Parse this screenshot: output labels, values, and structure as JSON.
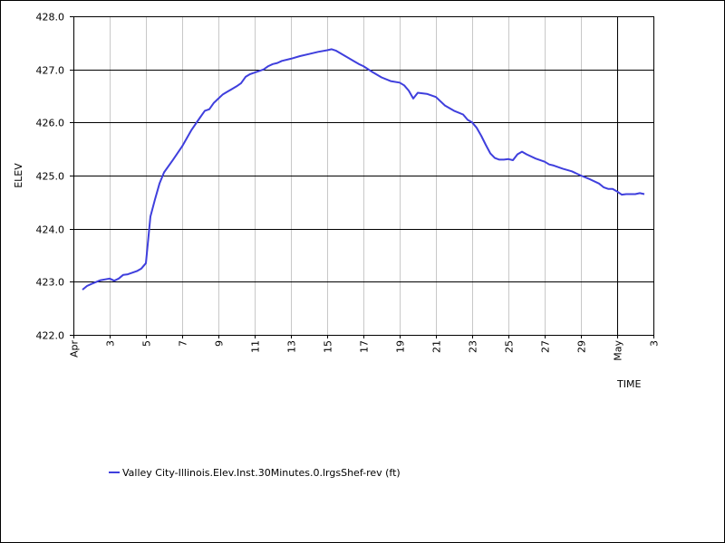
{
  "chart_data": {
    "type": "line",
    "title": "",
    "xlabel": "TIME",
    "ylabel": "ELEV",
    "x_unit": "day-of-month (Apr 1 .. May 3)",
    "x_range": [
      "2011-04-01",
      "2011-05-03"
    ],
    "ylim": [
      422.0,
      428.0
    ],
    "y_ticks": [
      "422.0",
      "423.0",
      "424.0",
      "425.0",
      "426.0",
      "427.0",
      "428.0"
    ],
    "x_ticks": [
      {
        "date": "2011-04-01",
        "label": "Apr",
        "major": true
      },
      {
        "date": "2011-04-03",
        "label": "3",
        "major": false
      },
      {
        "date": "2011-04-05",
        "label": "5",
        "major": false
      },
      {
        "date": "2011-04-07",
        "label": "7",
        "major": false
      },
      {
        "date": "2011-04-09",
        "label": "9",
        "major": false
      },
      {
        "date": "2011-04-11",
        "label": "11",
        "major": false
      },
      {
        "date": "2011-04-13",
        "label": "13",
        "major": false
      },
      {
        "date": "2011-04-15",
        "label": "15",
        "major": false
      },
      {
        "date": "2011-04-17",
        "label": "17",
        "major": false
      },
      {
        "date": "2011-04-19",
        "label": "19",
        "major": false
      },
      {
        "date": "2011-04-21",
        "label": "21",
        "major": false
      },
      {
        "date": "2011-04-23",
        "label": "23",
        "major": false
      },
      {
        "date": "2011-04-25",
        "label": "25",
        "major": false
      },
      {
        "date": "2011-04-27",
        "label": "27",
        "major": false
      },
      {
        "date": "2011-04-29",
        "label": "29",
        "major": false
      },
      {
        "date": "2011-05-01",
        "label": "May",
        "major": true
      },
      {
        "date": "2011-05-03",
        "label": "3",
        "major": false
      }
    ],
    "grid": true,
    "legend_position": "bottom-left",
    "series": [
      {
        "name": "Valley City-Illinois.Elev.Inst.30Minutes.0.lrgsShef-rev (ft)",
        "color": "#3f3fdd",
        "points": [
          [
            "2011-04-01 12:00",
            422.85
          ],
          [
            "2011-04-01 18:00",
            422.92
          ],
          [
            "2011-04-02 00:00",
            422.96
          ],
          [
            "2011-04-02 12:00",
            423.03
          ],
          [
            "2011-04-03 00:00",
            423.06
          ],
          [
            "2011-04-03 06:00",
            423.02
          ],
          [
            "2011-04-03 12:00",
            423.06
          ],
          [
            "2011-04-03 18:00",
            423.13
          ],
          [
            "2011-04-04 00:00",
            423.14
          ],
          [
            "2011-04-04 12:00",
            423.2
          ],
          [
            "2011-04-04 18:00",
            423.25
          ],
          [
            "2011-04-05 00:00",
            423.35
          ],
          [
            "2011-04-05 06:00",
            424.23
          ],
          [
            "2011-04-05 12:00",
            424.55
          ],
          [
            "2011-04-05 18:00",
            424.85
          ],
          [
            "2011-04-06 00:00",
            425.06
          ],
          [
            "2011-04-06 12:00",
            425.3
          ],
          [
            "2011-04-07 00:00",
            425.55
          ],
          [
            "2011-04-07 12:00",
            425.85
          ],
          [
            "2011-04-08 00:00",
            426.1
          ],
          [
            "2011-04-08 06:00",
            426.22
          ],
          [
            "2011-04-08 12:00",
            426.25
          ],
          [
            "2011-04-08 18:00",
            426.37
          ],
          [
            "2011-04-09 00:00",
            426.45
          ],
          [
            "2011-04-09 06:00",
            426.53
          ],
          [
            "2011-04-09 12:00",
            426.58
          ],
          [
            "2011-04-10 00:00",
            426.68
          ],
          [
            "2011-04-10 06:00",
            426.74
          ],
          [
            "2011-04-10 12:00",
            426.86
          ],
          [
            "2011-04-10 18:00",
            426.91
          ],
          [
            "2011-04-11 00:00",
            426.94
          ],
          [
            "2011-04-11 12:00",
            427.0
          ],
          [
            "2011-04-11 18:00",
            427.06
          ],
          [
            "2011-04-12 00:00",
            427.1
          ],
          [
            "2011-04-12 06:00",
            427.12
          ],
          [
            "2011-04-12 12:00",
            427.16
          ],
          [
            "2011-04-13 00:00",
            427.2
          ],
          [
            "2011-04-13 12:00",
            427.25
          ],
          [
            "2011-04-14 00:00",
            427.29
          ],
          [
            "2011-04-14 12:00",
            427.33
          ],
          [
            "2011-04-15 00:00",
            427.36
          ],
          [
            "2011-04-15 06:00",
            427.38
          ],
          [
            "2011-04-15 12:00",
            427.35
          ],
          [
            "2011-04-16 00:00",
            427.25
          ],
          [
            "2011-04-16 12:00",
            427.15
          ],
          [
            "2011-04-16 18:00",
            427.1
          ],
          [
            "2011-04-17 00:00",
            427.06
          ],
          [
            "2011-04-17 12:00",
            426.95
          ],
          [
            "2011-04-18 00:00",
            426.85
          ],
          [
            "2011-04-18 12:00",
            426.78
          ],
          [
            "2011-04-19 00:00",
            426.75
          ],
          [
            "2011-04-19 06:00",
            426.7
          ],
          [
            "2011-04-19 12:00",
            426.6
          ],
          [
            "2011-04-19 18:00",
            426.45
          ],
          [
            "2011-04-20 00:00",
            426.56
          ],
          [
            "2011-04-20 12:00",
            426.54
          ],
          [
            "2011-04-21 00:00",
            426.48
          ],
          [
            "2011-04-21 12:00",
            426.32
          ],
          [
            "2011-04-22 00:00",
            426.22
          ],
          [
            "2011-04-22 12:00",
            426.15
          ],
          [
            "2011-04-22 18:00",
            426.05
          ],
          [
            "2011-04-23 00:00",
            426.0
          ],
          [
            "2011-04-23 06:00",
            425.9
          ],
          [
            "2011-04-23 12:00",
            425.75
          ],
          [
            "2011-04-23 18:00",
            425.58
          ],
          [
            "2011-04-24 00:00",
            425.42
          ],
          [
            "2011-04-24 06:00",
            425.33
          ],
          [
            "2011-04-24 12:00",
            425.3
          ],
          [
            "2011-04-24 18:00",
            425.3
          ],
          [
            "2011-04-25 00:00",
            425.31
          ],
          [
            "2011-04-25 06:00",
            425.29
          ],
          [
            "2011-04-25 12:00",
            425.4
          ],
          [
            "2011-04-25 18:00",
            425.45
          ],
          [
            "2011-04-26 00:00",
            425.4
          ],
          [
            "2011-04-26 12:00",
            425.32
          ],
          [
            "2011-04-27 00:00",
            425.26
          ],
          [
            "2011-04-27 06:00",
            425.21
          ],
          [
            "2011-04-27 12:00",
            425.19
          ],
          [
            "2011-04-28 00:00",
            425.13
          ],
          [
            "2011-04-28 12:00",
            425.08
          ],
          [
            "2011-04-29 00:00",
            425.0
          ],
          [
            "2011-04-29 12:00",
            424.93
          ],
          [
            "2011-04-30 00:00",
            424.85
          ],
          [
            "2011-04-30 06:00",
            424.78
          ],
          [
            "2011-04-30 12:00",
            424.75
          ],
          [
            "2011-04-30 18:00",
            424.75
          ],
          [
            "2011-05-01 00:00",
            424.7
          ],
          [
            "2011-05-01 06:00",
            424.64
          ],
          [
            "2011-05-01 12:00",
            424.65
          ],
          [
            "2011-05-01 18:00",
            424.65
          ],
          [
            "2011-05-02 00:00",
            424.65
          ],
          [
            "2011-05-02 06:00",
            424.67
          ],
          [
            "2011-05-02 12:00",
            424.65
          ]
        ]
      }
    ]
  }
}
